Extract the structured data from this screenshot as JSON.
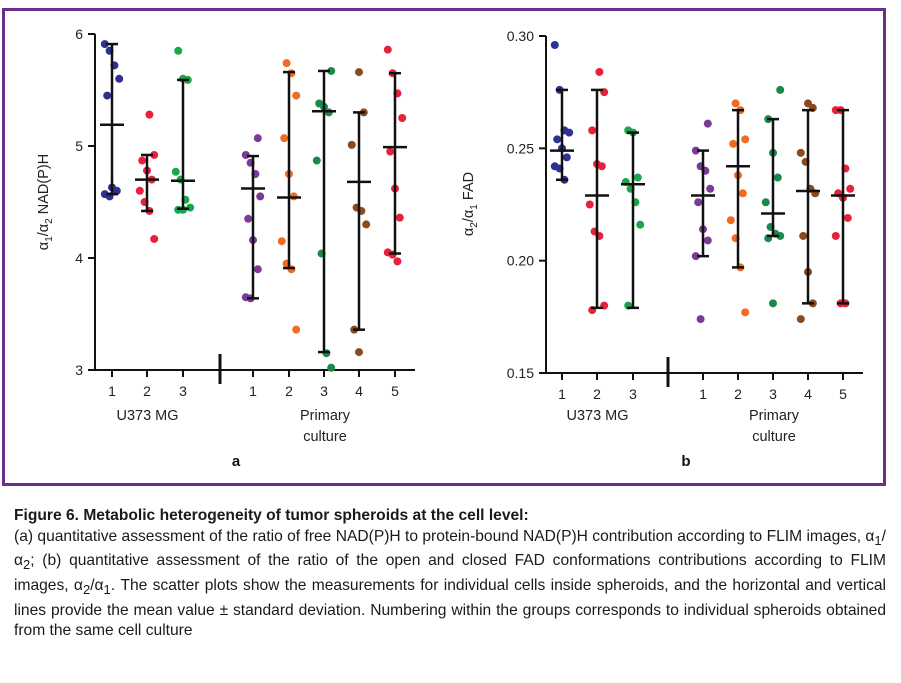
{
  "chart_data": [
    {
      "type": "scatter",
      "panel_label": "a",
      "ylabel_html": "α<sub>1</sub>/α<sub>2</sub> NAD(P)H",
      "ylim": [
        3,
        6
      ],
      "yticks": [
        "3",
        "4",
        "5",
        "6"
      ],
      "ytick_values": [
        3,
        4,
        5,
        6
      ],
      "groups": [
        {
          "label": "U373 MG",
          "categories": [
            "1",
            "2",
            "3"
          ]
        },
        {
          "label_lines": [
            "Primary",
            "culture"
          ],
          "categories": [
            "1",
            "2",
            "3",
            "4",
            "5"
          ]
        }
      ],
      "series": [
        {
          "group": 0,
          "category": "1",
          "color": "#2e3192",
          "points": [
            5.91,
            5.85,
            5.72,
            5.6,
            5.45,
            4.63,
            4.6,
            4.57,
            4.55
          ],
          "mean": 5.19,
          "sd_low": 4.57,
          "sd_high": 5.91
        },
        {
          "group": 0,
          "category": "2",
          "color": "#e8203a",
          "points": [
            5.28,
            4.92,
            4.87,
            4.78,
            4.7,
            4.6,
            4.5,
            4.42,
            4.17
          ],
          "mean": 4.7,
          "sd_low": 4.42,
          "sd_high": 4.92
        },
        {
          "group": 0,
          "category": "3",
          "color": "#1aa64a",
          "points": [
            5.85,
            5.6,
            5.59,
            4.77,
            4.7,
            4.52,
            4.45,
            4.43,
            4.43
          ],
          "mean": 4.69,
          "sd_low": 4.44,
          "sd_high": 5.59
        },
        {
          "group": 1,
          "category": "1",
          "color": "#7b3a96",
          "points": [
            5.07,
            4.92,
            4.85,
            4.75,
            4.55,
            4.35,
            4.16,
            3.9,
            3.65,
            3.64
          ],
          "mean": 4.62,
          "sd_low": 3.64,
          "sd_high": 4.91
        },
        {
          "group": 1,
          "category": "2",
          "color": "#f26b21",
          "points": [
            5.74,
            5.65,
            5.45,
            5.07,
            4.75,
            4.55,
            4.15,
            3.95,
            3.9,
            3.36
          ],
          "mean": 4.54,
          "sd_low": 3.91,
          "sd_high": 5.66
        },
        {
          "group": 1,
          "category": "3",
          "color": "#1a8a4a",
          "points": [
            5.67,
            5.38,
            5.35,
            5.3,
            4.87,
            4.04,
            3.15,
            3.02
          ],
          "mean": 5.31,
          "sd_low": 3.16,
          "sd_high": 5.67
        },
        {
          "group": 1,
          "category": "4",
          "color": "#8b4a1c",
          "points": [
            5.66,
            5.3,
            5.01,
            4.45,
            4.42,
            4.3,
            3.36,
            3.16
          ],
          "mean": 4.68,
          "sd_low": 3.36,
          "sd_high": 5.3
        },
        {
          "group": 1,
          "category": "5",
          "color": "#e8203a",
          "points": [
            5.86,
            5.65,
            5.47,
            5.25,
            4.95,
            4.62,
            4.36,
            4.05,
            4.03,
            3.97
          ],
          "mean": 4.99,
          "sd_low": 4.04,
          "sd_high": 5.65
        }
      ]
    },
    {
      "type": "scatter",
      "panel_label": "b",
      "ylabel_html": "α<sub>2</sub>/α<sub>1</sub> FAD",
      "ylim": [
        0.15,
        0.3
      ],
      "yticks": [
        "0.15",
        "0.20",
        "0.25",
        "0.30"
      ],
      "ytick_values": [
        0.15,
        0.2,
        0.25,
        0.3
      ],
      "groups": [
        {
          "label": "U373 MG",
          "categories": [
            "1",
            "2",
            "3"
          ]
        },
        {
          "label_lines": [
            "Primary",
            "culture"
          ],
          "categories": [
            "1",
            "2",
            "3",
            "4",
            "5"
          ]
        }
      ],
      "series": [
        {
          "group": 0,
          "category": "1",
          "color": "#2e3192",
          "points": [
            0.296,
            0.276,
            0.258,
            0.257,
            0.254,
            0.25,
            0.246,
            0.242,
            0.241,
            0.236
          ],
          "mean": 0.249,
          "sd_low": 0.236,
          "sd_high": 0.276
        },
        {
          "group": 0,
          "category": "2",
          "color": "#e8203a",
          "points": [
            0.284,
            0.275,
            0.258,
            0.243,
            0.242,
            0.225,
            0.213,
            0.211,
            0.18,
            0.178
          ],
          "mean": 0.229,
          "sd_low": 0.179,
          "sd_high": 0.276
        },
        {
          "group": 0,
          "category": "3",
          "color": "#1aa64a",
          "points": [
            0.258,
            0.257,
            0.237,
            0.235,
            0.232,
            0.226,
            0.216,
            0.18
          ],
          "mean": 0.234,
          "sd_low": 0.179,
          "sd_high": 0.257
        },
        {
          "group": 1,
          "category": "1",
          "color": "#7b3a96",
          "points": [
            0.261,
            0.249,
            0.242,
            0.24,
            0.232,
            0.226,
            0.214,
            0.209,
            0.202,
            0.174
          ],
          "mean": 0.229,
          "sd_low": 0.202,
          "sd_high": 0.249
        },
        {
          "group": 1,
          "category": "2",
          "color": "#f26b21",
          "points": [
            0.27,
            0.267,
            0.254,
            0.252,
            0.238,
            0.23,
            0.218,
            0.21,
            0.197,
            0.177
          ],
          "mean": 0.242,
          "sd_low": 0.197,
          "sd_high": 0.267
        },
        {
          "group": 1,
          "category": "3",
          "color": "#1a8a4a",
          "points": [
            0.276,
            0.263,
            0.248,
            0.237,
            0.226,
            0.215,
            0.212,
            0.211,
            0.21,
            0.181
          ],
          "mean": 0.221,
          "sd_low": 0.211,
          "sd_high": 0.263
        },
        {
          "group": 1,
          "category": "4",
          "color": "#8b4a1c",
          "points": [
            0.27,
            0.268,
            0.248,
            0.244,
            0.232,
            0.23,
            0.211,
            0.195,
            0.181,
            0.174
          ],
          "mean": 0.231,
          "sd_low": 0.181,
          "sd_high": 0.267
        },
        {
          "group": 1,
          "category": "5",
          "color": "#e8203a",
          "points": [
            0.267,
            0.267,
            0.241,
            0.232,
            0.23,
            0.228,
            0.219,
            0.211,
            0.181,
            0.181
          ],
          "mean": 0.229,
          "sd_low": 0.181,
          "sd_high": 0.267
        }
      ]
    }
  ],
  "caption": {
    "title": "Figure 6. Metabolic heterogeneity of tumor spheroids at the cell level:",
    "body_html": "(a) quantitative assessment of the ratio of free NAD(P)H to protein-bound NAD(P)H contribution according to FLIM images, α<sub>1</sub>/α<sub>2</sub>; (b) quantitative assessment of the ratio of the open and closed FAD conformations contributions according to FLIM images, α<sub>2</sub>/α<sub>1</sub>. The scatter plots show the measurements for individual cells inside spheroids, and the horizontal and vertical lines provide the mean value ± standard deviation. Numbering within the groups corresponds to individual spheroids obtained from the same cell culture"
  },
  "colors": {
    "frame": "#6a2f8c"
  }
}
